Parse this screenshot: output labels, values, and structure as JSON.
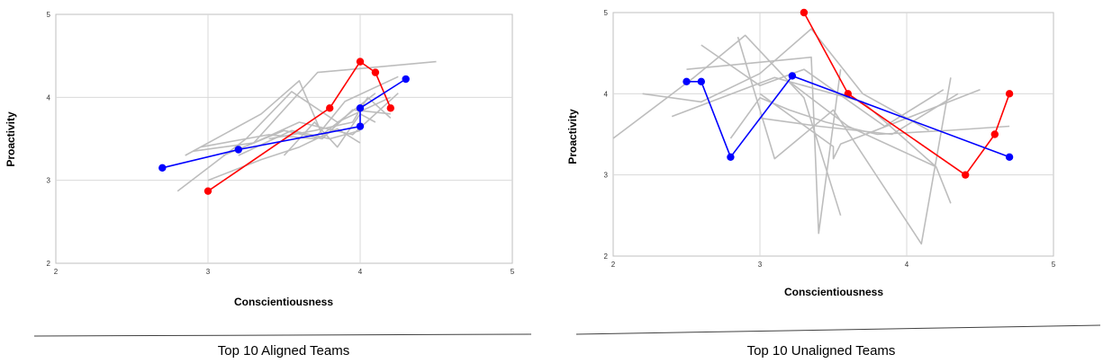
{
  "colors": {
    "grid": "#d9d9d9",
    "axis": "#bfbfbf",
    "team": "#bdbdbd",
    "highlight_red": "#ff0000",
    "highlight_blue": "#0000ff"
  },
  "chart_data": [
    {
      "type": "line",
      "caption": "Top 10 Aligned Teams",
      "xlabel": "Conscientiousness",
      "ylabel": "Proactivity",
      "xlim": [
        2,
        5
      ],
      "ylim": [
        2,
        5
      ],
      "xticks": [
        "2",
        "3",
        "4",
        "5"
      ],
      "yticks": [
        "2",
        "3",
        "4",
        "5"
      ],
      "grid": true,
      "series": [
        {
          "color": "gray",
          "points": [
            [
              2.85,
              3.3
            ],
            [
              3.35,
              3.8
            ],
            [
              3.6,
              4.2
            ],
            [
              3.75,
              3.55
            ],
            [
              4.1,
              4.05
            ]
          ]
        },
        {
          "color": "gray",
          "points": [
            [
              2.8,
              2.87
            ],
            [
              3.25,
              3.5
            ],
            [
              3.55,
              4.07
            ],
            [
              3.85,
              3.7
            ],
            [
              4.2,
              4.0
            ]
          ]
        },
        {
          "color": "gray",
          "points": [
            [
              2.9,
              3.35
            ],
            [
              3.3,
              3.45
            ],
            [
              3.6,
              3.7
            ],
            [
              3.95,
              3.55
            ],
            [
              4.25,
              4.05
            ]
          ]
        },
        {
          "color": "gray",
          "points": [
            [
              2.95,
              3.4
            ],
            [
              3.4,
              3.55
            ],
            [
              3.7,
              3.5
            ],
            [
              3.9,
              3.95
            ],
            [
              4.25,
              4.25
            ]
          ]
        },
        {
          "color": "gray",
          "points": [
            [
              3.0,
              3.0
            ],
            [
              3.35,
              3.25
            ],
            [
              3.6,
              3.4
            ],
            [
              3.85,
              3.62
            ],
            [
              4.0,
              3.45
            ]
          ]
        },
        {
          "color": "gray",
          "points": [
            [
              3.1,
              3.3
            ],
            [
              3.5,
              3.6
            ],
            [
              3.75,
              3.5
            ],
            [
              3.95,
              3.85
            ],
            [
              4.2,
              3.8
            ]
          ]
        },
        {
          "color": "gray",
          "points": [
            [
              3.4,
              3.5
            ],
            [
              3.7,
              3.6
            ],
            [
              3.95,
              3.7
            ],
            [
              4.05,
              4.0
            ],
            [
              4.2,
              3.75
            ]
          ]
        },
        {
          "color": "gray",
          "points": [
            [
              3.5,
              3.3
            ],
            [
              3.7,
              3.7
            ],
            [
              3.85,
              3.4
            ],
            [
              4.0,
              3.8
            ],
            [
              4.1,
              3.7
            ]
          ]
        },
        {
          "color": "gray",
          "points": [
            [
              3.3,
              3.45
            ],
            [
              3.72,
              4.3
            ],
            [
              4.5,
              4.43
            ]
          ]
        },
        {
          "color": "gray",
          "points": [
            [
              3.2,
              3.3
            ],
            [
              3.55,
              3.6
            ],
            [
              3.8,
              3.5
            ],
            [
              4.0,
              3.6
            ]
          ]
        },
        {
          "color": "red",
          "points": [
            [
              3.0,
              2.87
            ],
            [
              3.8,
              3.87
            ],
            [
              4.0,
              4.43
            ],
            [
              4.1,
              4.3
            ],
            [
              4.2,
              3.87
            ]
          ]
        },
        {
          "color": "blue",
          "points": [
            [
              2.7,
              3.15
            ],
            [
              3.2,
              3.37
            ],
            [
              4.0,
              3.65
            ],
            [
              4.0,
              3.87
            ],
            [
              4.3,
              4.22
            ]
          ]
        }
      ]
    },
    {
      "type": "line",
      "caption": "Top 10 Unaligned Teams",
      "xlabel": "Conscientiousness",
      "ylabel": "Proactivity",
      "xlim": [
        2,
        5
      ],
      "ylim": [
        2,
        5
      ],
      "xticks": [
        "2",
        "3",
        "4",
        "5"
      ],
      "yticks": [
        "2",
        "3",
        "4",
        "5"
      ],
      "grid": true,
      "series": [
        {
          "color": "gray",
          "points": [
            [
              2.0,
              3.45
            ],
            [
              2.55,
              4.2
            ],
            [
              2.9,
              4.72
            ],
            [
              3.3,
              3.95
            ],
            [
              3.55,
              2.5
            ]
          ]
        },
        {
          "color": "gray",
          "points": [
            [
              2.2,
              4.0
            ],
            [
              2.6,
              3.9
            ],
            [
              3.0,
              4.25
            ],
            [
              3.35,
              4.8
            ],
            [
              3.7,
              4.0
            ],
            [
              4.15,
              3.55
            ]
          ]
        },
        {
          "color": "gray",
          "points": [
            [
              2.5,
              4.3
            ],
            [
              3.35,
              4.45
            ],
            [
              3.4,
              2.28
            ],
            [
              3.55,
              4.3
            ]
          ]
        },
        {
          "color": "gray",
          "points": [
            [
              2.4,
              3.72
            ],
            [
              3.1,
              4.2
            ],
            [
              3.7,
              3.9
            ],
            [
              4.2,
              3.1
            ]
          ]
        },
        {
          "color": "gray",
          "points": [
            [
              2.6,
              4.6
            ],
            [
              3.0,
              4.1
            ],
            [
              3.3,
              4.3
            ],
            [
              3.85,
              3.6
            ],
            [
              4.25,
              4.05
            ]
          ]
        },
        {
          "color": "gray",
          "points": [
            [
              2.85,
              4.7
            ],
            [
              3.1,
              3.2
            ],
            [
              3.5,
              3.8
            ],
            [
              4.1,
              2.15
            ],
            [
              4.3,
              4.2
            ]
          ]
        },
        {
          "color": "gray",
          "points": [
            [
              2.8,
              3.45
            ],
            [
              3.0,
              3.95
            ],
            [
              3.2,
              3.8
            ],
            [
              3.45,
              3.65
            ],
            [
              3.8,
              3.5
            ],
            [
              4.3,
              3.55
            ],
            [
              4.7,
              3.6
            ]
          ]
        },
        {
          "color": "gray",
          "points": [
            [
              3.0,
              4.0
            ],
            [
              3.5,
              3.35
            ],
            [
              3.5,
              3.2
            ],
            [
              3.55,
              3.38
            ],
            [
              4.5,
              4.05
            ]
          ]
        },
        {
          "color": "gray",
          "points": [
            [
              3.2,
              4.15
            ],
            [
              3.6,
              3.6
            ],
            [
              4.2,
              3.1
            ],
            [
              4.3,
              2.65
            ]
          ]
        },
        {
          "color": "gray",
          "points": [
            [
              3.0,
              3.7
            ],
            [
              3.4,
              3.6
            ],
            [
              3.9,
              3.5
            ],
            [
              4.35,
              4.0
            ]
          ]
        },
        {
          "color": "red",
          "points": [
            [
              3.3,
              5.0
            ],
            [
              3.6,
              4.0
            ],
            [
              4.4,
              3.0
            ],
            [
              4.6,
              3.5
            ],
            [
              4.7,
              4.0
            ]
          ]
        },
        {
          "color": "blue",
          "points": [
            [
              2.5,
              4.15
            ],
            [
              2.6,
              4.15
            ],
            [
              2.8,
              3.22
            ],
            [
              3.22,
              4.22
            ],
            [
              4.7,
              3.22
            ]
          ]
        }
      ]
    }
  ]
}
